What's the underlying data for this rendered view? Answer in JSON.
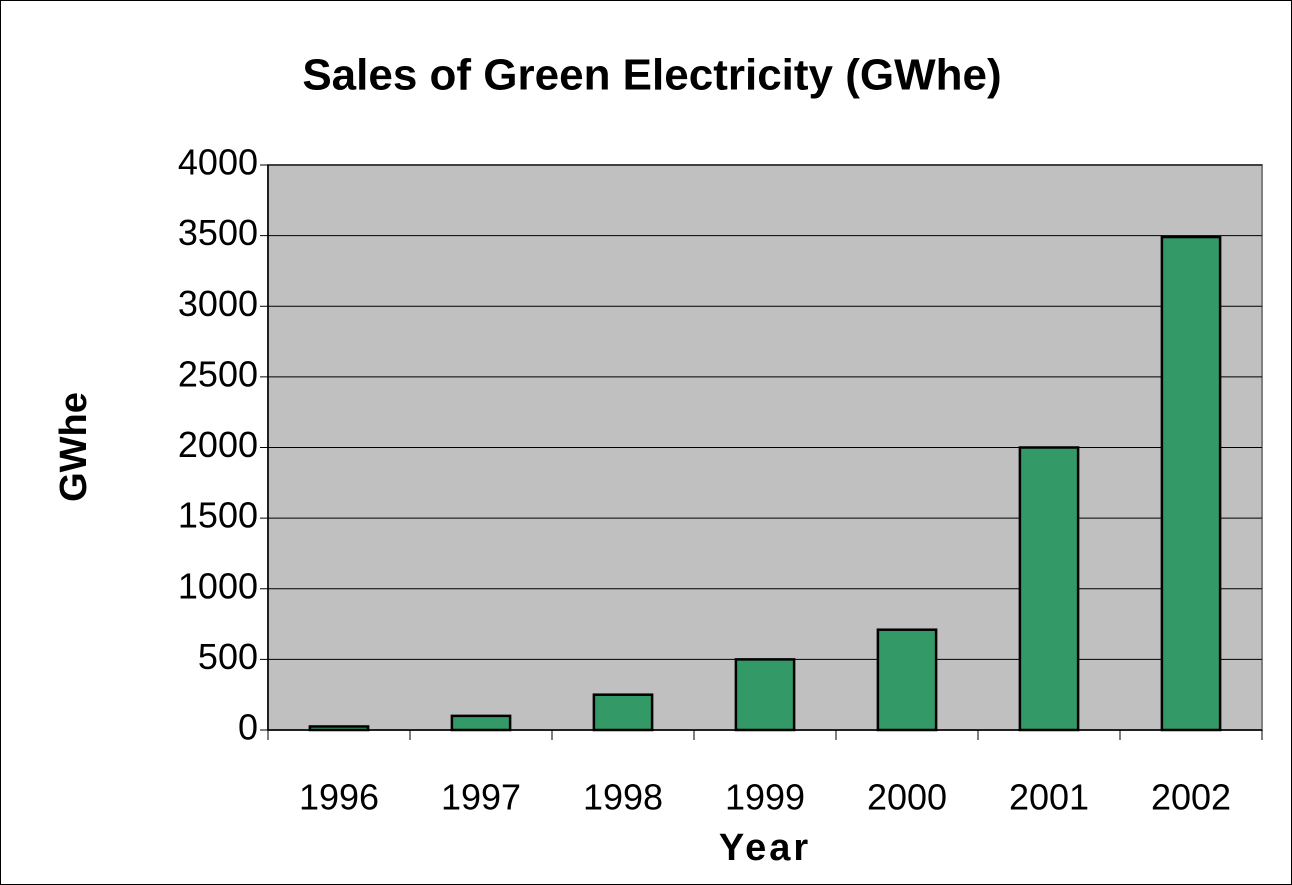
{
  "chart_data": {
    "type": "bar",
    "title": "Sales of Green Electricity (GWhe)",
    "x_label": "Year",
    "y_label": "GWhe",
    "categories": [
      "1996",
      "1997",
      "1998",
      "1999",
      "2000",
      "2001",
      "2002"
    ],
    "values": [
      25,
      100,
      250,
      500,
      710,
      2000,
      3490
    ],
    "color": "#339966",
    "plot_background": "#c0c0c0",
    "ylim": [
      0,
      4000
    ],
    "yticks": [
      0,
      500,
      1000,
      1500,
      2000,
      2500,
      3000,
      3500,
      4000
    ],
    "grid": true
  }
}
